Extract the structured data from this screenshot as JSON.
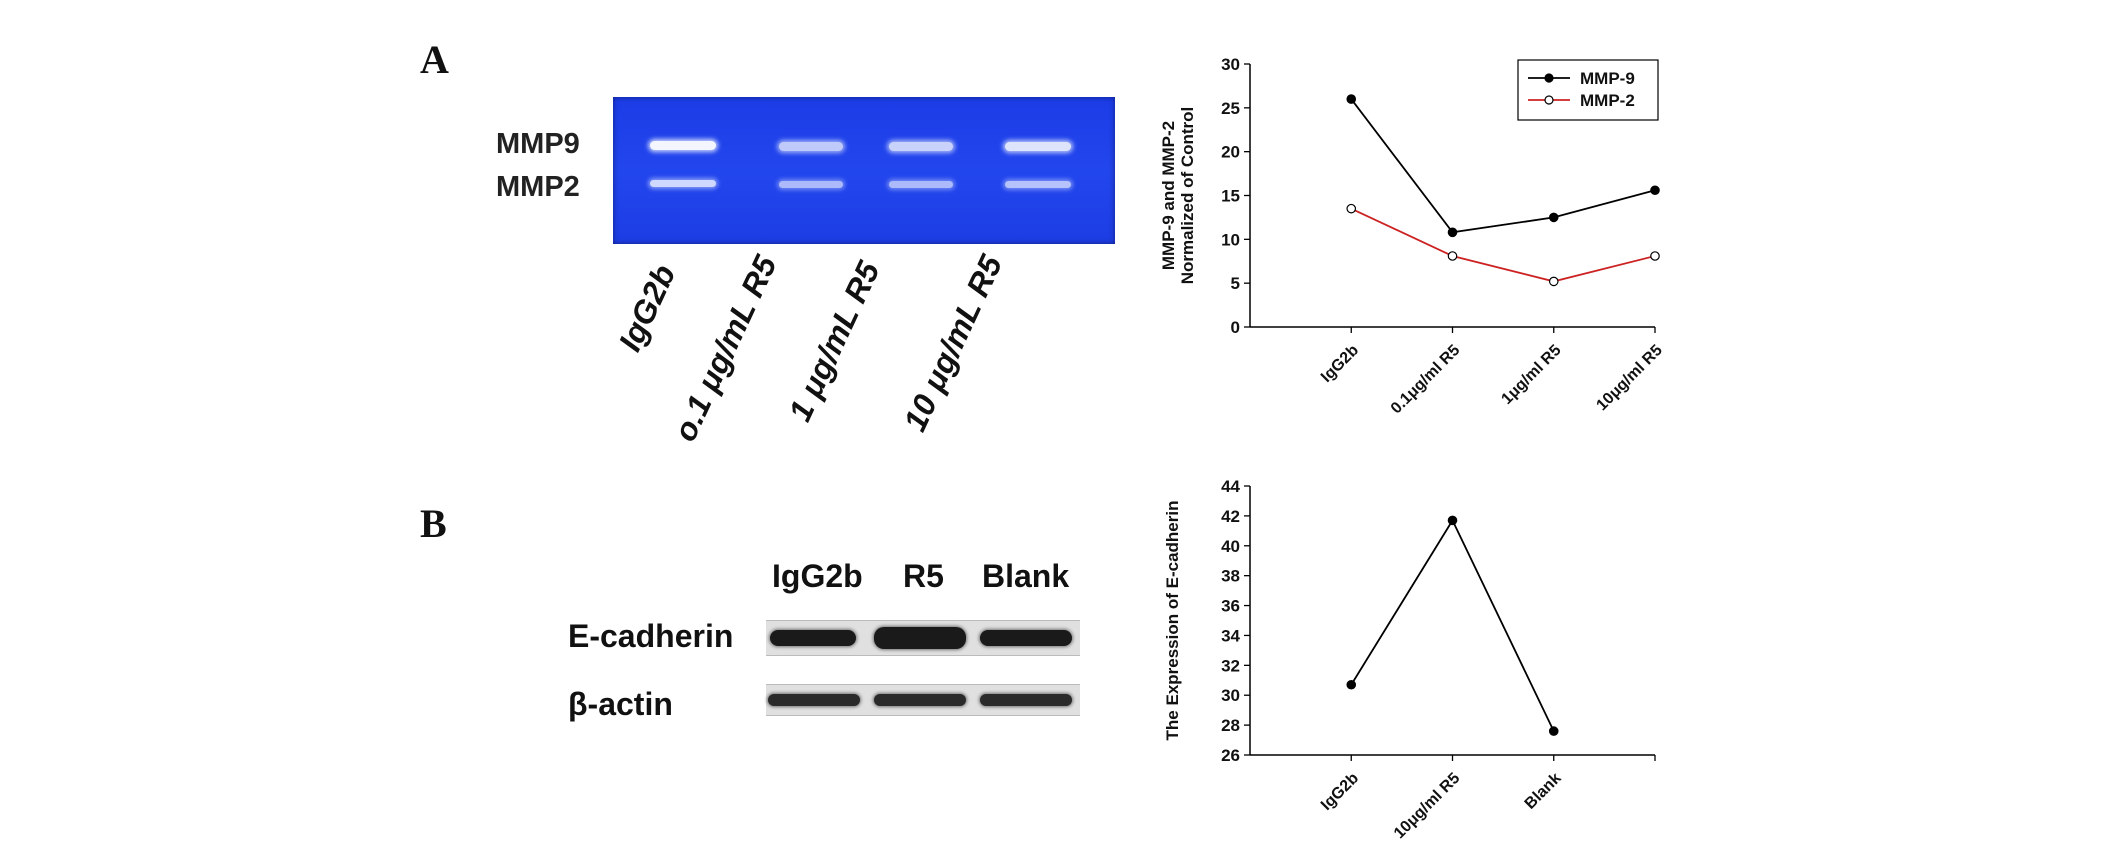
{
  "panels": {
    "a_label": "A",
    "b_label": "B"
  },
  "gel": {
    "row_labels": [
      "MMP9",
      "MMP2"
    ],
    "lane_labels": [
      "IgG2b",
      "o.1 μg/mL R5",
      "1 μg/mL R5",
      "10 μg/mL R5"
    ],
    "color": "#2246ee"
  },
  "blot": {
    "column_labels": [
      "IgG2b",
      "R5",
      "Blank"
    ],
    "row_labels": [
      "E-cadherin",
      "β-actin"
    ]
  },
  "chart_data": [
    {
      "type": "line",
      "categories": [
        "IgG2b",
        "0.1μg/ml R5",
        "1μg/ml R5",
        "10μg/ml R5"
      ],
      "series": [
        {
          "name": "MMP-9",
          "values": [
            26,
            10.8,
            12.5,
            15.6
          ],
          "color": "#000000",
          "marker": "filled"
        },
        {
          "name": "MMP-2",
          "values": [
            13.5,
            8.1,
            5.2,
            8.1
          ],
          "color": "#cc2222",
          "marker": "open"
        }
      ],
      "ylabel": "MMP-9 and MMP-2 Normalized of Control",
      "ylim": [
        0,
        30
      ],
      "yticks": [
        0,
        5,
        10,
        15,
        20,
        25,
        30
      ],
      "legend": "top-right"
    },
    {
      "type": "line",
      "categories": [
        "IgG2b",
        "10μg/ml R5",
        "Blank"
      ],
      "series": [
        {
          "values": [
            30.7,
            41.7,
            27.6
          ],
          "color": "#000000",
          "marker": "filled"
        }
      ],
      "ylabel": "The Expression of E-cadherin",
      "ylim": [
        26,
        44
      ],
      "yticks": [
        26,
        28,
        30,
        32,
        34,
        36,
        38,
        40,
        42,
        44
      ]
    }
  ]
}
